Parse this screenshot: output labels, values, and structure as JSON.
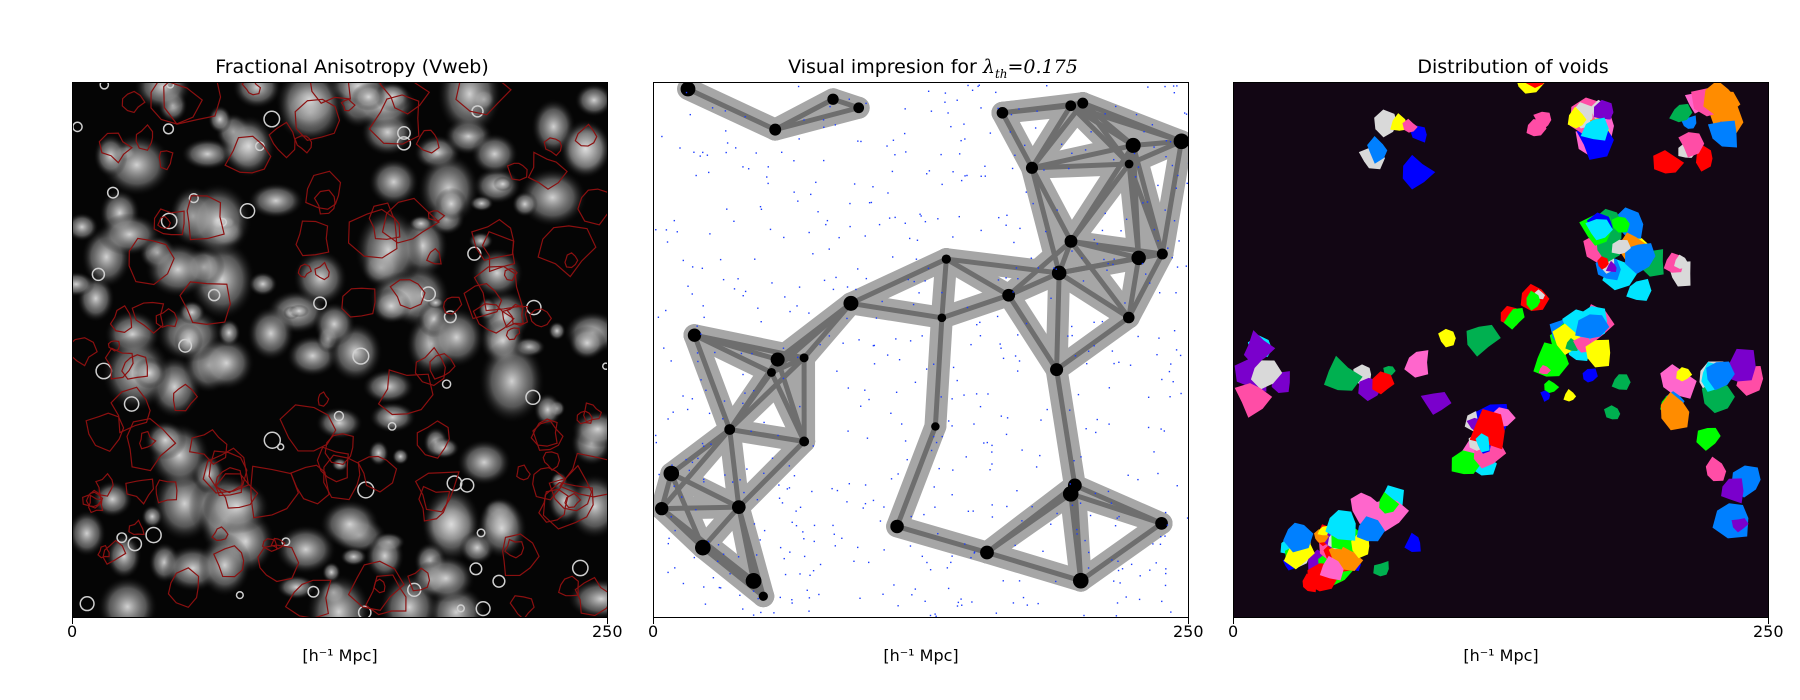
{
  "panels": [
    {
      "title": "Fractional Anisotropy (Vweb)",
      "x_ticks": [
        "0",
        "250"
      ],
      "xlabel": "[h⁻¹ Mpc]",
      "colors": {
        "background": "#000000",
        "bright": "#d8d8d8",
        "contour": "#8b1010"
      }
    },
    {
      "title_prefix": "Visual impresion for ",
      "title_math": "λ",
      "title_math_sub": "th",
      "title_value": "=0.175",
      "x_ticks": [
        "0",
        "250"
      ],
      "xlabel": "[h⁻¹ Mpc]",
      "colors": {
        "void": "#ffffff",
        "sheet": "#a6a6a6",
        "filament": "#6e6e6e",
        "knot": "#000000",
        "points": "#1a3cff"
      }
    },
    {
      "title": "Distribution of voids",
      "x_ticks": [
        "0",
        "250"
      ],
      "xlabel": "[h⁻¹ Mpc]",
      "colors": {
        "background": "#120614",
        "void_palette": [
          "#ff0000",
          "#00e5ff",
          "#ffff00",
          "#00ff00",
          "#0000ff",
          "#ff8c00",
          "#ff66cc",
          "#7a00cc",
          "#00b050",
          "#d9d9d9",
          "#ff4da6",
          "#0080ff"
        ]
      }
    }
  ]
}
